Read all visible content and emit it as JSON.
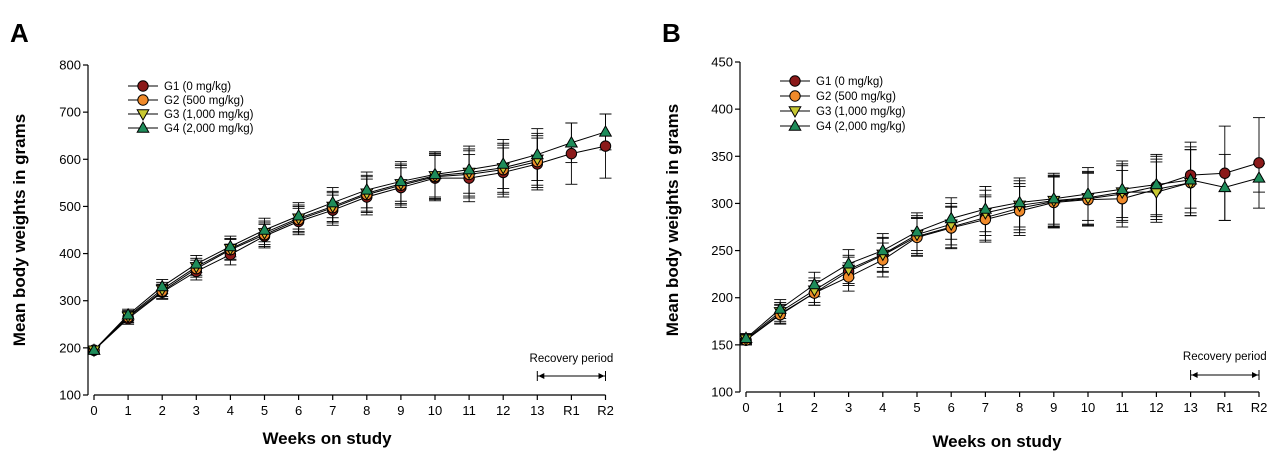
{
  "chart_data": [
    {
      "panel": "A",
      "type": "line",
      "xlabel": "Weeks on study",
      "ylabel": "Mean body weights in grams",
      "categories": [
        "0",
        "1",
        "2",
        "3",
        "4",
        "5",
        "6",
        "7",
        "8",
        "9",
        "10",
        "11",
        "12",
        "13",
        "R1",
        "R2"
      ],
      "yticks": [
        100,
        200,
        300,
        400,
        500,
        600,
        700,
        800
      ],
      "ylim": [
        100,
        800
      ],
      "annotation": "Recovery period",
      "annotation_span": [
        "13",
        "R2"
      ],
      "legend_position": "top-left",
      "series": [
        {
          "name": "G1 (0 mg/kg)",
          "marker": "circle",
          "color": "#8b1a1a",
          "values": [
            195,
            262,
            318,
            362,
            398,
            437,
            468,
            492,
            520,
            540,
            560,
            560,
            572,
            590,
            612,
            628
          ],
          "errors": [
            6,
            12,
            15,
            18,
            22,
            25,
            28,
            32,
            38,
            42,
            48,
            50,
            52,
            55,
            65,
            68
          ]
        },
        {
          "name": "G2 (500 mg/kg)",
          "marker": "circle",
          "color": "#f08a2a",
          "values": [
            195,
            265,
            320,
            368,
            408,
            440,
            472,
            497,
            525,
            545,
            563,
            568,
            578,
            595,
            null,
            null
          ],
          "errors": [
            6,
            12,
            15,
            18,
            22,
            25,
            28,
            32,
            38,
            42,
            48,
            50,
            52,
            55,
            null,
            null
          ]
        },
        {
          "name": "G3 (1,000 mg/kg)",
          "marker": "triangle-down",
          "color": "#c8c832",
          "values": [
            195,
            267,
            324,
            372,
            410,
            444,
            475,
            500,
            528,
            548,
            565,
            572,
            582,
            600,
            null,
            null
          ],
          "errors": [
            6,
            12,
            15,
            18,
            22,
            25,
            28,
            32,
            38,
            42,
            48,
            50,
            52,
            55,
            null,
            null
          ]
        },
        {
          "name": "G4 (2,000 mg/kg)",
          "marker": "triangle-up",
          "color": "#1e8c5a",
          "values": [
            195,
            270,
            330,
            378,
            415,
            450,
            480,
            508,
            535,
            553,
            568,
            578,
            590,
            610,
            635,
            658
          ],
          "errors": [
            6,
            12,
            15,
            18,
            22,
            25,
            28,
            32,
            38,
            42,
            48,
            50,
            52,
            55,
            42,
            38
          ]
        }
      ]
    },
    {
      "panel": "B",
      "type": "line",
      "xlabel": "Weeks on study",
      "ylabel": "Mean body weights in grams",
      "categories": [
        "0",
        "1",
        "2",
        "3",
        "4",
        "5",
        "6",
        "7",
        "8",
        "9",
        "10",
        "11",
        "12",
        "13",
        "R1",
        "R2"
      ],
      "yticks": [
        100,
        150,
        200,
        250,
        300,
        350,
        400,
        450
      ],
      "ylim": [
        100,
        450
      ],
      "annotation": "Recovery period",
      "annotation_span": [
        "13",
        "R2"
      ],
      "legend_position": "top-left",
      "series": [
        {
          "name": "G1 (0 mg/kg)",
          "marker": "circle",
          "color": "#8b1a1a",
          "values": [
            155,
            183,
            205,
            228,
            245,
            265,
            275,
            285,
            295,
            302,
            305,
            310,
            318,
            330,
            332,
            343
          ],
          "errors": [
            5,
            10,
            13,
            15,
            18,
            20,
            22,
            24,
            26,
            27,
            28,
            30,
            32,
            35,
            50,
            48
          ]
        },
        {
          "name": "G2 (500 mg/kg)",
          "marker": "circle",
          "color": "#f08a2a",
          "values": [
            155,
            182,
            205,
            222,
            240,
            264,
            274,
            283,
            292,
            301,
            304,
            305,
            315,
            322,
            null,
            null
          ],
          "errors": [
            5,
            10,
            13,
            15,
            18,
            20,
            22,
            24,
            26,
            27,
            28,
            30,
            32,
            35,
            null,
            null
          ]
        },
        {
          "name": "G3 (1,000 mg/kg)",
          "marker": "triangle-down",
          "color": "#c8c832",
          "values": [
            156,
            185,
            208,
            230,
            246,
            267,
            278,
            290,
            298,
            303,
            306,
            312,
            312,
            322,
            null,
            null
          ],
          "errors": [
            5,
            10,
            13,
            15,
            18,
            20,
            22,
            24,
            26,
            27,
            28,
            30,
            32,
            35,
            null,
            null
          ]
        },
        {
          "name": "G4 (2,000 mg/kg)",
          "marker": "triangle-up",
          "color": "#1e8c5a",
          "values": [
            157,
            188,
            214,
            236,
            250,
            270,
            284,
            294,
            301,
            305,
            310,
            315,
            320,
            325,
            317,
            327
          ],
          "errors": [
            5,
            10,
            13,
            15,
            18,
            20,
            22,
            24,
            26,
            27,
            28,
            30,
            32,
            35,
            35,
            15
          ]
        }
      ]
    }
  ]
}
